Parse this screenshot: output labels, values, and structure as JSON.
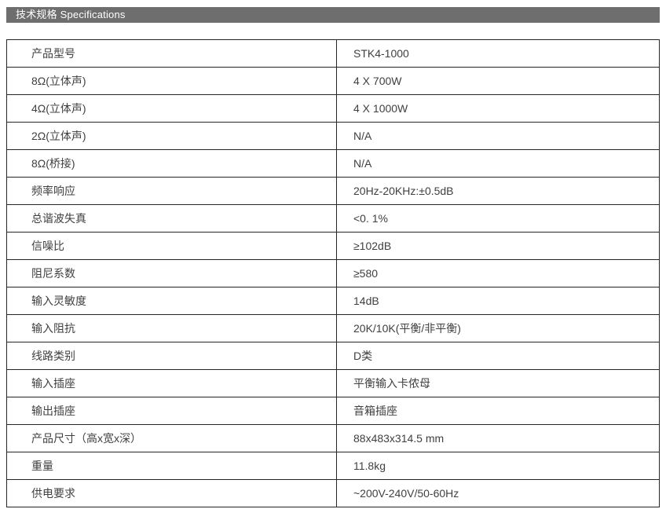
{
  "header": {
    "title": "技术规格 Specifications",
    "bg_color": "#6e6e6e",
    "text_color": "#ffffff"
  },
  "table": {
    "border_color": "#262626",
    "text_color": "#404040",
    "rows": [
      {
        "label": "产品型号",
        "value": "STK4-1000"
      },
      {
        "label": "8Ω(立体声)",
        "value": "4 X 700W"
      },
      {
        "label": "4Ω(立体声)",
        "value": "4 X 1000W"
      },
      {
        "label": "2Ω(立体声)",
        "value": "N/A"
      },
      {
        "label": "8Ω(桥接)",
        "value": "N/A"
      },
      {
        "label": "频率响应",
        "value": "20Hz-20KHz:±0.5dB"
      },
      {
        "label": "总谐波失真",
        "value": "<0. 1%"
      },
      {
        "label": "信噪比",
        "value": "≥102dB"
      },
      {
        "label": "阻尼系数",
        "value": "≥580"
      },
      {
        "label": "输入灵敏度",
        "value": "14dB"
      },
      {
        "label": "输入阻抗",
        "value": "20K/10K(平衡/非平衡)"
      },
      {
        "label": "线路类别",
        "value": "D类"
      },
      {
        "label": "输入插座",
        "value": "平衡输入卡侬母"
      },
      {
        "label": "输出插座",
        "value": "音箱插座"
      },
      {
        "label": "产品尺寸（高x宽x深）",
        "value": "88x483x314.5 mm"
      },
      {
        "label": "重量",
        "value": "11.8kg"
      },
      {
        "label": "供电要求",
        "value": "~200V-240V/50-60Hz"
      }
    ]
  }
}
